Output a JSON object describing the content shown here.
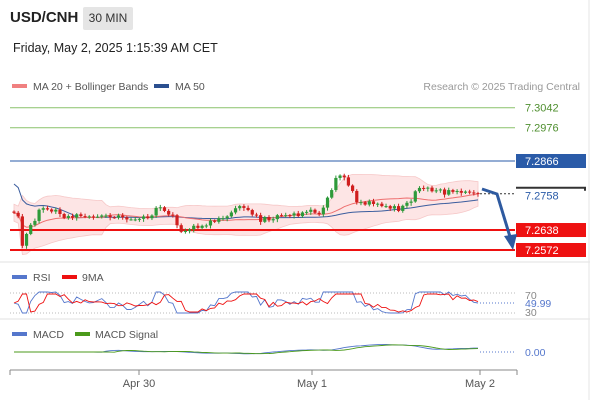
{
  "header": {
    "symbol": "USD/CNH",
    "timeframe": "30 MIN",
    "date": "Friday, May 2, 2025 1:15:39 AM CET"
  },
  "legend": {
    "ma20_bb": "MA 20 + Bollinger Bands",
    "ma50": "MA 50",
    "credit": "Research © 2025 Trading Central"
  },
  "levels": [
    {
      "value": 7.3042,
      "label": "7.3042",
      "style": "green"
    },
    {
      "value": 7.2976,
      "label": "7.2976",
      "style": "green"
    },
    {
      "value": 7.2866,
      "label": "7.2866",
      "style": "blue"
    },
    {
      "value": 7.2638,
      "label": "7.2638",
      "style": "red"
    },
    {
      "value": 7.2572,
      "label": "7.2572",
      "style": "red"
    }
  ],
  "last_price": {
    "value": 7.2758,
    "label": "7.2758"
  },
  "rsi": {
    "legend_rsi": "RSI",
    "legend_9ma": "9MA",
    "level_70": "70",
    "level_30": "30",
    "value_label": "49.99",
    "value": 49.99
  },
  "macd": {
    "legend_macd": "MACD",
    "legend_signal": "MACD Signal",
    "value_label": "0.00",
    "value": 0.0
  },
  "x_axis": {
    "ticks": [
      "Apr 30",
      "May 1",
      "May 2"
    ]
  },
  "colors": {
    "up": "#2e9a3a",
    "down": "#d01e1e",
    "bb_fill": "#fde5e5",
    "ma20": "#ee6f6f",
    "ma50": "#3b5d9e",
    "green_level": "#8ac26b",
    "blue_level": "#2a5ba8",
    "red_level": "#ee1111",
    "arrow": "#2e5aa0",
    "rsi": "#5577cc",
    "rsi_ma": "#ee1111",
    "macd": "#5577cc",
    "signal": "#4b9a1b"
  },
  "chart_data": {
    "type": "candlestick",
    "y_range": [
      7.252,
      7.311
    ],
    "x_index_range": [
      0,
      120
    ],
    "candle_close": [
      7.2695,
      7.2683,
      7.2586,
      7.2625,
      7.2655,
      7.2668,
      7.2705,
      7.271,
      7.2706,
      7.2699,
      7.2705,
      7.2691,
      7.2678,
      7.2684,
      7.2679,
      7.269,
      7.2684,
      7.2683,
      7.2683,
      7.2682,
      7.2682,
      7.2686,
      7.2686,
      7.268,
      7.2679,
      7.2686,
      7.268,
      7.2673,
      7.2673,
      7.2673,
      7.2675,
      7.2683,
      7.2677,
      7.2686,
      7.2711,
      7.2713,
      7.2701,
      7.2689,
      7.2687,
      7.2654,
      7.2632,
      7.2635,
      7.264,
      7.2652,
      7.2645,
      7.2652,
      7.2653,
      7.2669,
      7.2665,
      7.2677,
      7.2677,
      7.2683,
      7.2696,
      7.271,
      7.2717,
      7.2711,
      7.2704,
      7.2689,
      7.2687,
      7.2665,
      7.2681,
      7.267,
      7.2674,
      7.2687,
      7.2686,
      7.2687,
      7.2686,
      7.2693,
      7.2684,
      7.2696,
      7.2698,
      7.2705,
      7.2695,
      7.269,
      7.2712,
      7.2745,
      7.277,
      7.281,
      7.2818,
      7.2812,
      7.2785,
      7.2767,
      7.273,
      7.273,
      7.2722,
      7.2733,
      7.2724,
      7.2725,
      7.2717,
      7.2717,
      7.2709,
      7.2717,
      7.2701,
      7.2718,
      7.2728,
      7.2732,
      7.2766,
      7.2777,
      7.2775,
      7.2778,
      7.2766,
      7.2769,
      7.2772,
      7.2755,
      7.277,
      7.2764,
      7.2767,
      7.2761,
      7.2765,
      7.2762,
      7.276,
      7.2758
    ],
    "ma20_end": 7.274,
    "ma50_end": 7.2722,
    "rsi_last": 49.99,
    "macd_last": 0.0
  }
}
